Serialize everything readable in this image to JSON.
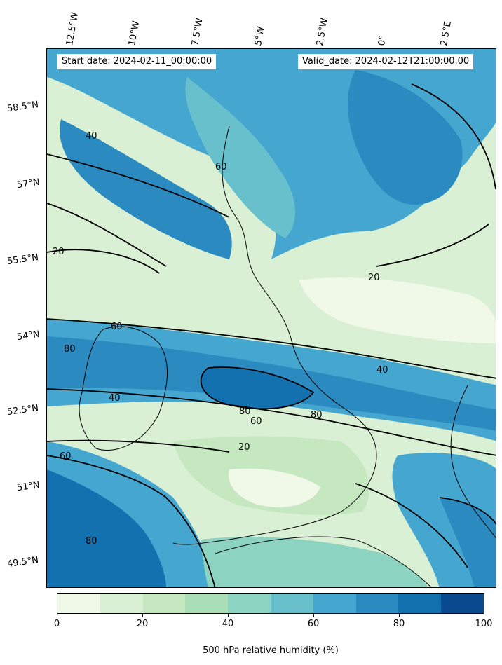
{
  "header": {
    "start_date": "Start date: 2024-02-11_00:00:00",
    "valid_date": "Valid_date: 2024-02-12T21:00:00.00"
  },
  "longitude_labels": [
    "12.5°W",
    "10°W",
    "7.5°W",
    "5°W",
    "2.5°W",
    "0°",
    "2.5°E"
  ],
  "latitude_labels": [
    "58.5°N",
    "57°N",
    "55.5°N",
    "54°N",
    "52.5°N",
    "51°N",
    "49.5°N"
  ],
  "contour_labels": [
    "20",
    "40",
    "60",
    "80"
  ],
  "colorbar": {
    "title": "500 hPa relative humidity (%)",
    "tick_labels": [
      "0",
      "20",
      "40",
      "60",
      "80",
      "100"
    ],
    "range": [
      0,
      100
    ],
    "levels": [
      0,
      10,
      20,
      30,
      40,
      50,
      60,
      70,
      80,
      90,
      100
    ],
    "colors": [
      "#f0f9e8",
      "#daf0d4",
      "#c6e8c0",
      "#aadeb6",
      "#8cd3c1",
      "#67c0cb",
      "#45a6cf",
      "#2b8ac0",
      "#1371b0",
      "#094a8f"
    ]
  },
  "map": {
    "field": "500 hPa relative humidity",
    "units": "%",
    "coastline_color": "#000000"
  }
}
